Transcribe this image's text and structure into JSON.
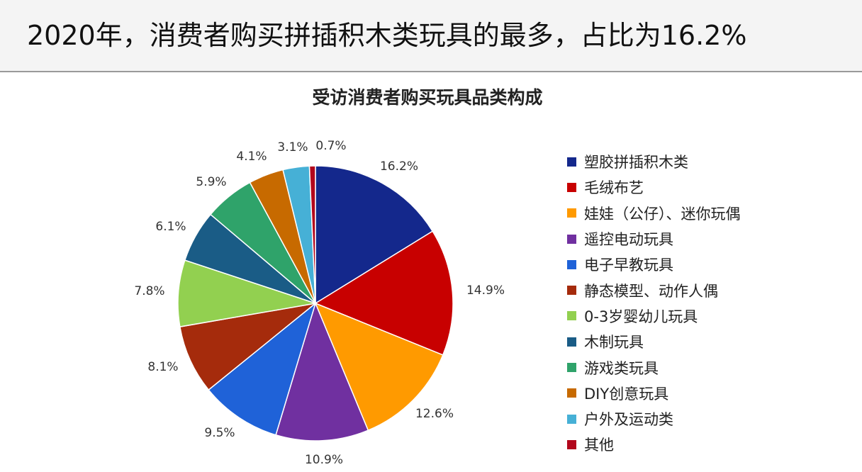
{
  "headline": "2020年，消费者购买拼插积木类玩具的最多，占比为16.2%",
  "chart_data": {
    "type": "pie",
    "title": "受访消费者购买玩具品类构成",
    "legend_position": "right",
    "slices": [
      {
        "label": "塑胶拼插积木类",
        "value": 16.2,
        "value_label": "16.2%",
        "color": "#14288c"
      },
      {
        "label": "毛绒布艺",
        "value": 14.9,
        "value_label": "14.9%",
        "color": "#c80000"
      },
      {
        "label": "娃娃（公仔）、迷你玩偶",
        "value": 12.6,
        "value_label": "12.6%",
        "color": "#ff9a00"
      },
      {
        "label": "遥控电动玩具",
        "value": 10.9,
        "value_label": "10.9%",
        "color": "#7030a0"
      },
      {
        "label": "电子早教玩具",
        "value": 9.5,
        "value_label": "9.5%",
        "color": "#1f62d8"
      },
      {
        "label": "静态模型、动作人偶",
        "value": 8.1,
        "value_label": "8.1%",
        "color": "#a52b0c"
      },
      {
        "label": "0-3岁婴幼儿玩具",
        "value": 7.8,
        "value_label": "7.8%",
        "color": "#92d050"
      },
      {
        "label": "木制玩具",
        "value": 6.1,
        "value_label": "6.1%",
        "color": "#1a5c86"
      },
      {
        "label": "游戏类玩具",
        "value": 5.9,
        "value_label": "5.9%",
        "color": "#2fa36a"
      },
      {
        "label": "DIY创意玩具",
        "value": 4.1,
        "value_label": "4.1%",
        "color": "#c76a00"
      },
      {
        "label": "户外及运动类",
        "value": 3.1,
        "value_label": "3.1%",
        "color": "#46b0d6"
      },
      {
        "label": "其他",
        "value": 0.7,
        "value_label": "0.7%",
        "color": "#b2071c"
      }
    ]
  }
}
